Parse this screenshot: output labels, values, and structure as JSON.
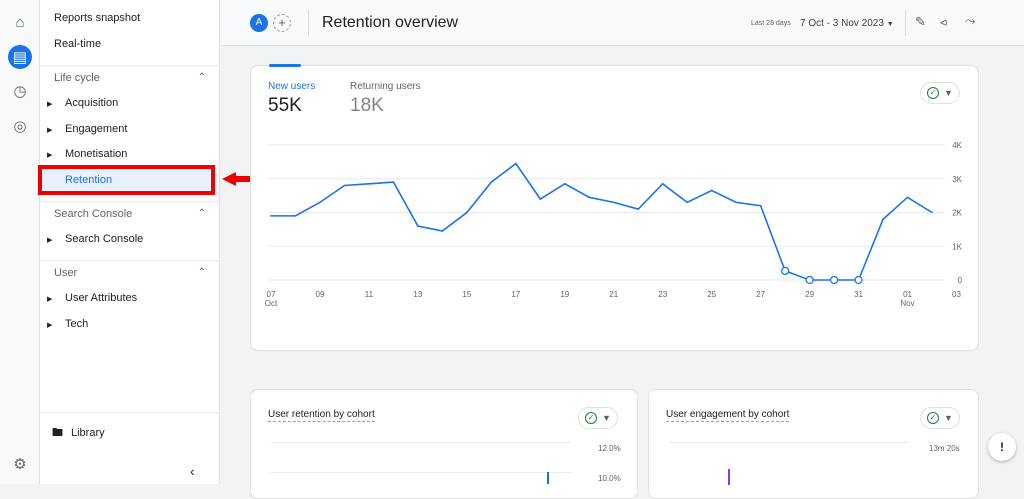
{
  "nav": {
    "top_items": [
      "Reports snapshot",
      "Real-time"
    ],
    "sections": [
      {
        "title": "Life cycle",
        "items": [
          "Acquisition",
          "Engagement",
          "Monetisation",
          "Retention"
        ]
      },
      {
        "title": "Search Console",
        "items": [
          "Search Console"
        ]
      },
      {
        "title": "User",
        "items": [
          "User Attributes",
          "Tech"
        ]
      }
    ],
    "selected": "Retention",
    "library": "Library"
  },
  "header": {
    "avatar": "A",
    "plus": "+",
    "title": "Retention overview",
    "date_prefix": "Last 28 days",
    "date_range": "7 Oct - 3 Nov 2023"
  },
  "main_card": {
    "tabs": [
      {
        "label": "New users",
        "value": "55K"
      },
      {
        "label": "Returning users",
        "value": "18K"
      }
    ]
  },
  "chart_data": {
    "type": "line",
    "x": [
      "07 Oct",
      "08",
      "09",
      "10",
      "11",
      "12",
      "13",
      "14",
      "15",
      "16",
      "17",
      "18",
      "19",
      "20",
      "21",
      "22",
      "23",
      "24",
      "25",
      "26",
      "27",
      "28",
      "29",
      "30",
      "31",
      "01 Nov",
      "02",
      "03"
    ],
    "x_tick_labels": [
      [
        "07",
        "Oct"
      ],
      [
        "09",
        ""
      ],
      [
        "11",
        ""
      ],
      [
        "13",
        ""
      ],
      [
        "15",
        ""
      ],
      [
        "17",
        ""
      ],
      [
        "19",
        ""
      ],
      [
        "21",
        ""
      ],
      [
        "23",
        ""
      ],
      [
        "25",
        ""
      ],
      [
        "27",
        ""
      ],
      [
        "29",
        ""
      ],
      [
        "31",
        ""
      ],
      [
        "01",
        "Nov"
      ],
      [
        "03",
        ""
      ]
    ],
    "series": [
      {
        "values": [
          1900,
          1900,
          2300,
          2800,
          2850,
          2900,
          1600,
          1450,
          2000,
          2900,
          3450,
          2400,
          2850,
          2450,
          2300,
          2100,
          2850,
          2300,
          2650,
          2300,
          2200,
          270,
          0,
          0,
          0,
          1800,
          2450,
          2000
        ]
      }
    ],
    "y_ticks": [
      "0",
      "1K",
      "2K",
      "3K",
      "4K"
    ],
    "ylim": [
      0,
      4000
    ],
    "grid": true,
    "color": "#1a73e8"
  },
  "cards": [
    {
      "title": "User retention by cohort",
      "ticks": [
        "12.0%",
        "10.0%"
      ]
    },
    {
      "title": "User engagement by cohort",
      "ticks": [
        "13m 20s"
      ]
    }
  ]
}
